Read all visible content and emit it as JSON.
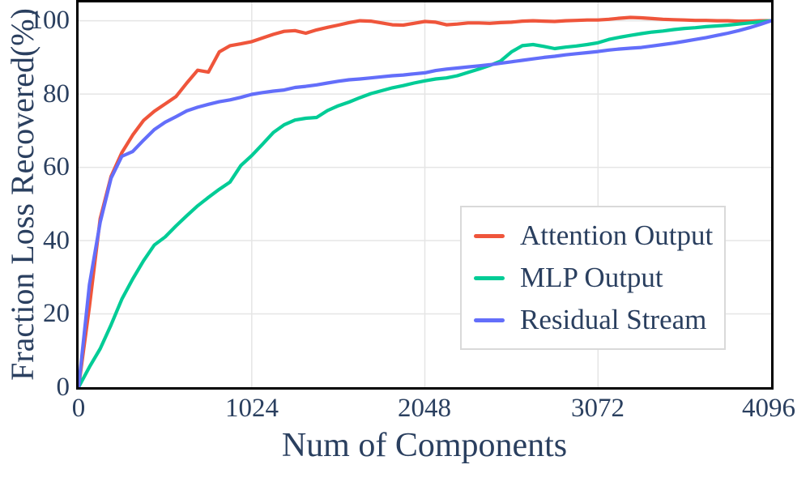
{
  "colors": {
    "text": "#2a3f5f",
    "grid": "#e5e5e5",
    "axis": "#000000",
    "background": "#ffffff",
    "legend_border": "#d9d9d9"
  },
  "chart_data": {
    "type": "line",
    "title": "",
    "xlabel": "Num of Components",
    "ylabel": "Fraction Loss Recovered(%)",
    "xlim": [
      0,
      4096
    ],
    "ylim": [
      0,
      105
    ],
    "x_ticks": [
      0,
      1024,
      2048,
      3072,
      4096
    ],
    "y_ticks": [
      0,
      20,
      40,
      60,
      80,
      100
    ],
    "grid": true,
    "legend_position": "center-right",
    "x_start": 0,
    "x_step": 64,
    "series": [
      {
        "name": "Attention Output",
        "color": "#EF553B",
        "values": [
          0,
          22,
          46,
          57.5,
          64,
          68.8,
          72.8,
          75.3,
          77.3,
          79.3,
          83,
          86.5,
          86,
          91.5,
          93.2,
          93.7,
          94.3,
          95.3,
          96.3,
          97.1,
          97.3,
          96.6,
          97.5,
          98.2,
          98.8,
          99.5,
          100,
          99.9,
          99.4,
          98.9,
          98.8,
          99.3,
          99.8,
          99.6,
          98.9,
          99.1,
          99.4,
          99.4,
          99.3,
          99.5,
          99.6,
          99.9,
          100,
          99.9,
          99.8,
          100,
          100.1,
          100.2,
          100.2,
          100.4,
          100.7,
          100.9,
          100.8,
          100.6,
          100.4,
          100.3,
          100.2,
          100.1,
          100.1,
          100,
          100,
          99.9,
          99.9,
          100,
          100
        ]
      },
      {
        "name": "MLP Output",
        "color": "#00CC96",
        "values": [
          0,
          5.5,
          10.5,
          17,
          24,
          29.5,
          34.5,
          38.8,
          41,
          44,
          46.8,
          49.5,
          51.8,
          54,
          56,
          60.5,
          63.2,
          66.3,
          69.5,
          71.6,
          72.9,
          73.4,
          73.6,
          75.5,
          76.8,
          77.8,
          79,
          80.1,
          80.9,
          81.7,
          82.3,
          83,
          83.6,
          84.1,
          84.4,
          85,
          85.9,
          86.8,
          87.8,
          89,
          91.5,
          93.2,
          93.5,
          93,
          92.4,
          92.8,
          93.1,
          93.5,
          94,
          94.9,
          95.5,
          96,
          96.5,
          96.9,
          97.2,
          97.6,
          97.9,
          98.1,
          98.4,
          98.6,
          98.8,
          99.1,
          99.4,
          99.7,
          100
        ]
      },
      {
        "name": "Residual Stream",
        "color": "#636EFA",
        "values": [
          0,
          28,
          45,
          57,
          63,
          64.3,
          67.4,
          70.3,
          72.3,
          73.8,
          75.4,
          76.4,
          77.2,
          77.9,
          78.4,
          79.1,
          79.9,
          80.4,
          80.8,
          81.1,
          81.8,
          82.1,
          82.5,
          83,
          83.5,
          83.9,
          84.1,
          84.4,
          84.7,
          85,
          85.2,
          85.5,
          85.8,
          86.4,
          86.8,
          87.1,
          87.4,
          87.7,
          88,
          88.4,
          88.8,
          89.2,
          89.6,
          90,
          90.3,
          90.7,
          91,
          91.3,
          91.6,
          92,
          92.3,
          92.5,
          92.7,
          93.1,
          93.5,
          93.9,
          94.4,
          94.9,
          95.4,
          96,
          96.6,
          97.3,
          98.1,
          99,
          100
        ]
      }
    ]
  }
}
